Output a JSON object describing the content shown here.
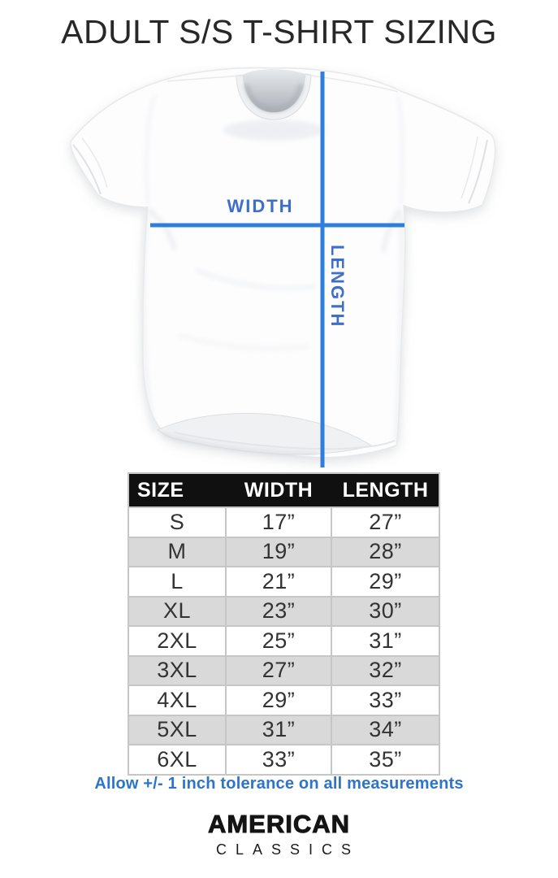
{
  "title": "ADULT S/S T-SHIRT SIZING",
  "diagram": {
    "width_label": "WIDTH",
    "length_label": "LENGTH"
  },
  "size_table": {
    "headers": {
      "size": "SIZE",
      "width": "WIDTH",
      "length": "LENGTH"
    },
    "rows": [
      {
        "size": "S",
        "width": "17”",
        "length": "27”"
      },
      {
        "size": "M",
        "width": "19”",
        "length": "28”"
      },
      {
        "size": "L",
        "width": "21”",
        "length": "29”"
      },
      {
        "size": "XL",
        "width": "23”",
        "length": "30”"
      },
      {
        "size": "2XL",
        "width": "25”",
        "length": "31”"
      },
      {
        "size": "3XL",
        "width": "27”",
        "length": "32”"
      },
      {
        "size": "4XL",
        "width": "29”",
        "length": "33”"
      },
      {
        "size": "5XL",
        "width": "31”",
        "length": "34”"
      },
      {
        "size": "6XL",
        "width": "33”",
        "length": "35”"
      }
    ]
  },
  "footer": {
    "tolerance_note": "Allow +/- 1 inch tolerance on all measurements",
    "brand_line1": "AMERICAN",
    "brand_line2": "CLASSICS"
  },
  "colors": {
    "accent_line": "#2e7fd9",
    "accent_label": "#3e6fc8",
    "note_blue": "#2e74c9",
    "header_bg": "#101010",
    "row_alt": "#d9d9d9",
    "table_border": "#c6c6c6",
    "title_color": "#282828"
  }
}
